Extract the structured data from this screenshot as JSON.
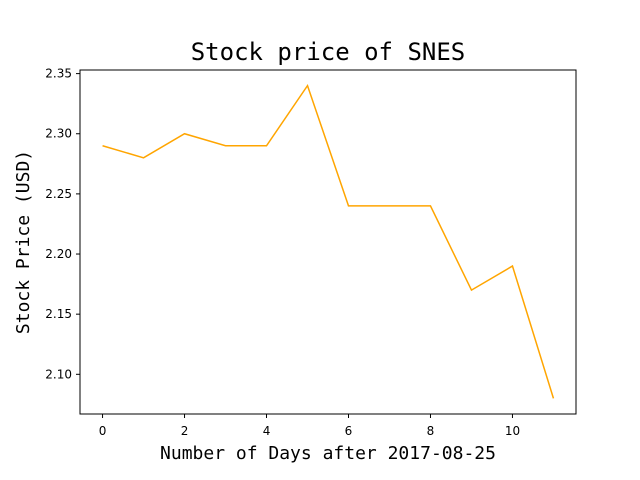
{
  "chart_data": {
    "type": "line",
    "title": "Stock price of SNES",
    "xlabel": "Number of Days after 2017-08-25",
    "ylabel": "Stock Price (USD)",
    "x": [
      0,
      1,
      2,
      3,
      4,
      5,
      6,
      7,
      8,
      9,
      10,
      11
    ],
    "series": [
      {
        "values": [
          2.29,
          2.28,
          2.3,
          2.29,
          2.29,
          2.34,
          2.24,
          2.24,
          2.24,
          2.17,
          2.19,
          2.08
        ],
        "color": "#FFA500"
      }
    ],
    "xlim": [
      -0.55,
      11.55
    ],
    "ylim": [
      2.067,
      2.353
    ],
    "xticks": [
      0,
      2,
      4,
      6,
      8,
      10
    ],
    "yticks": [
      2.1,
      2.15,
      2.2,
      2.25,
      2.3,
      2.35
    ],
    "xtick_labels": [
      "0",
      "2",
      "4",
      "6",
      "8",
      "10"
    ],
    "ytick_labels": [
      "2.10",
      "2.15",
      "2.20",
      "2.25",
      "2.30",
      "2.35"
    ],
    "grid": false,
    "legend": "none"
  }
}
